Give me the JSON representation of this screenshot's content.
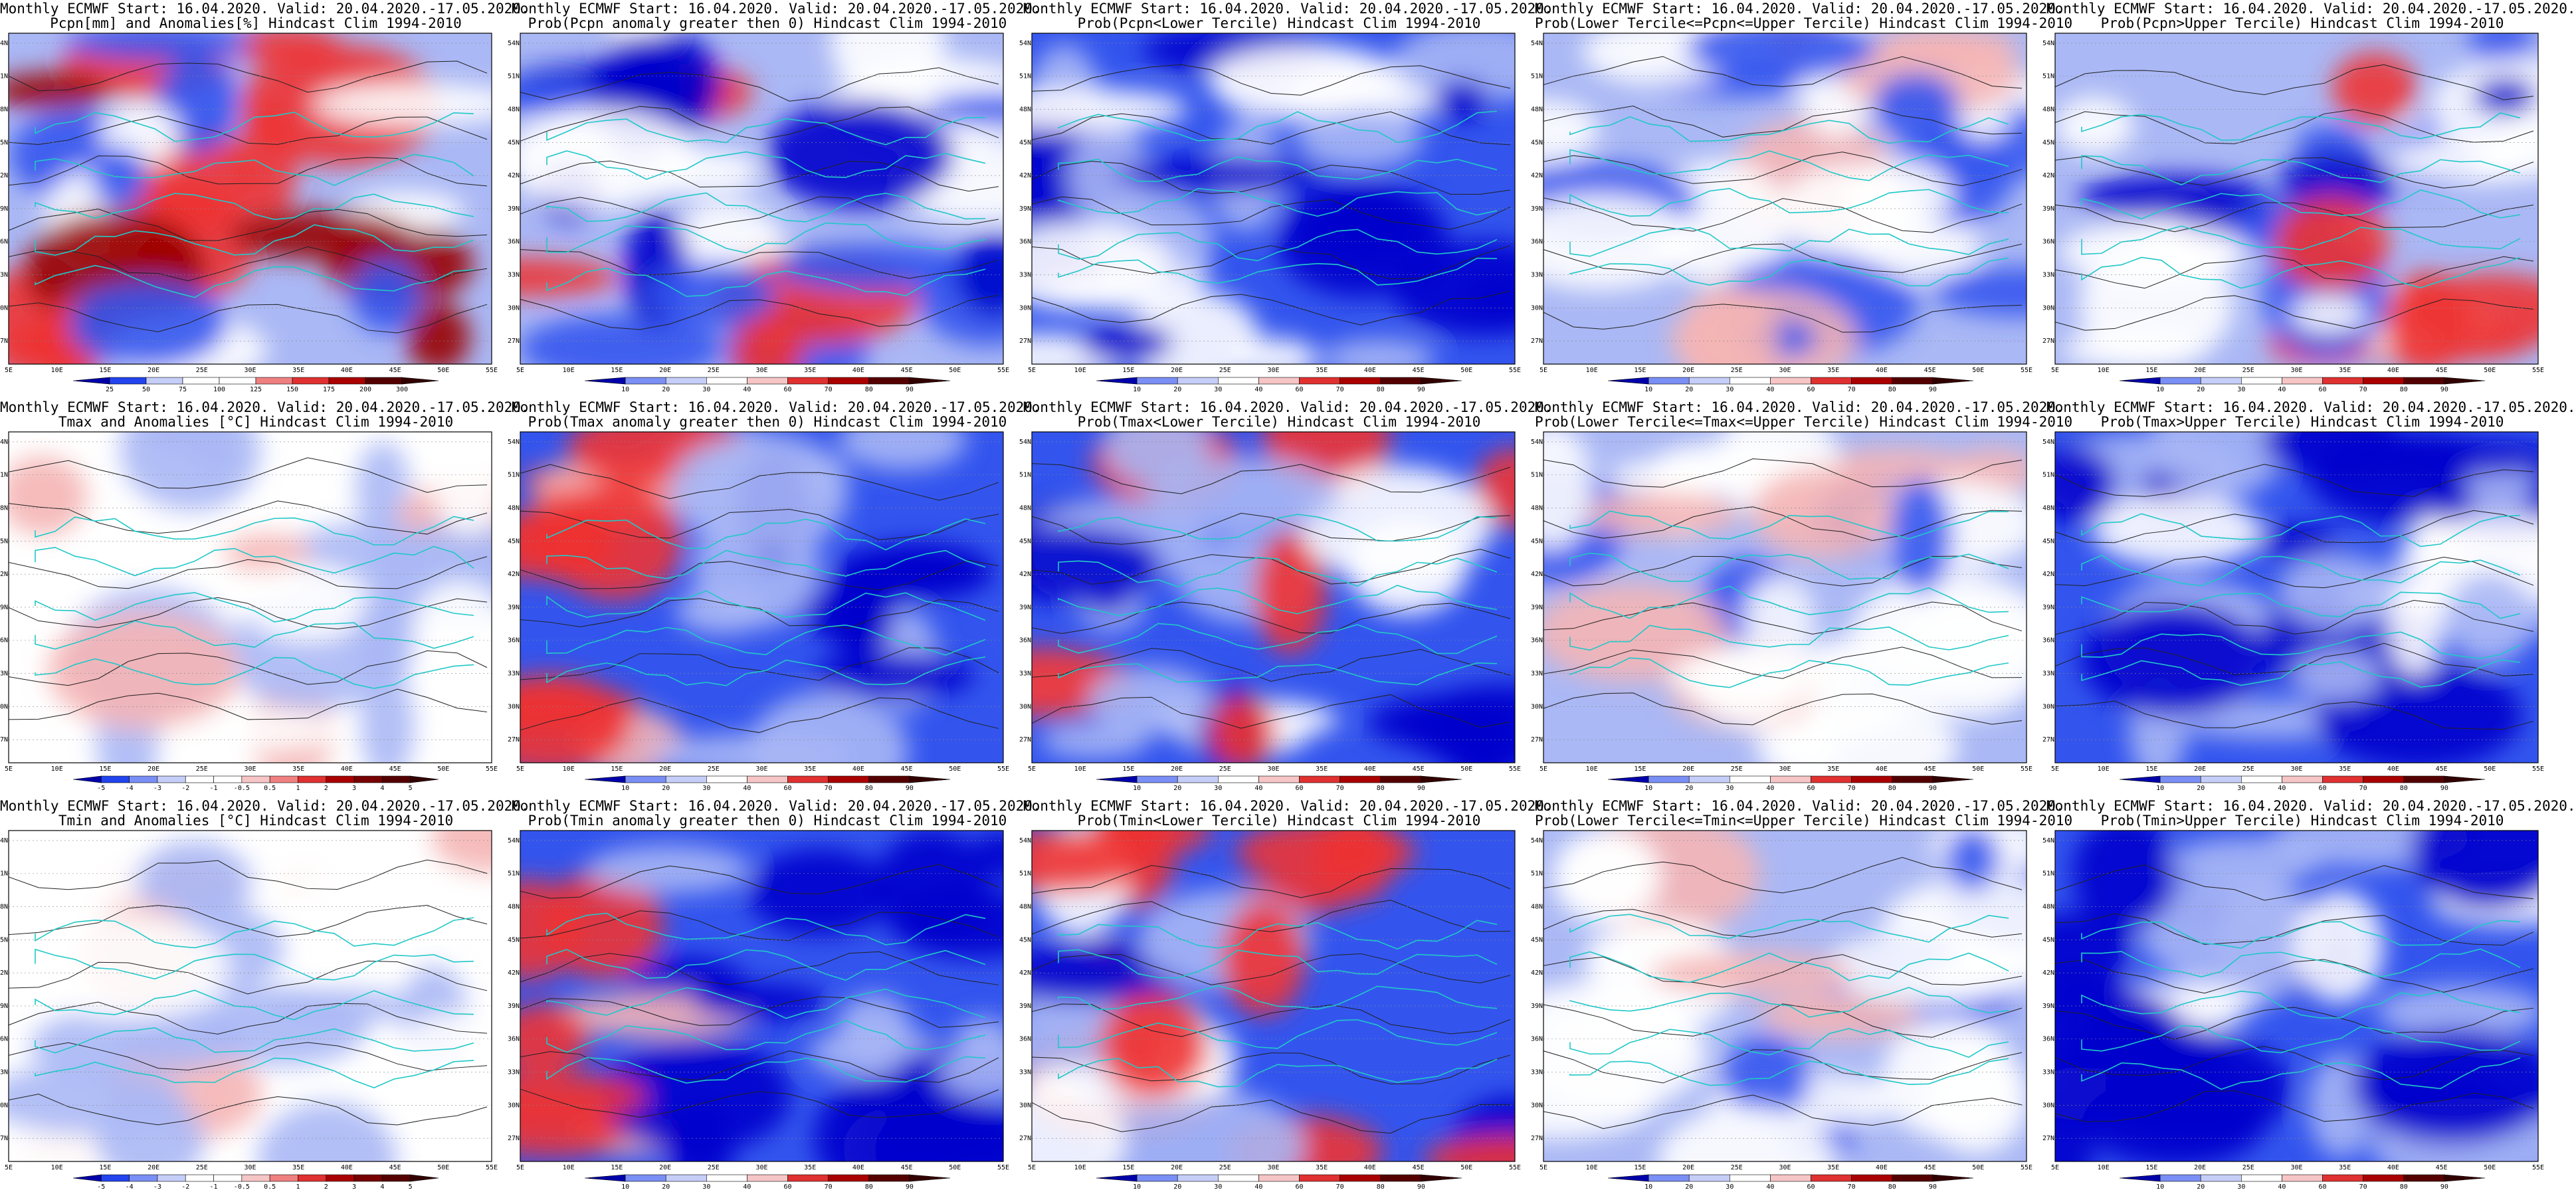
{
  "common_title": "Monthly ECMWF Start: 16.04.2020. Valid: 20.04.2020.-17.05.2020.",
  "lat_ticks": [
    "54N",
    "51N",
    "48N",
    "45N",
    "42N",
    "39N",
    "36N",
    "33N",
    "30N",
    "27N"
  ],
  "lon_ticks": [
    "5E",
    "10E",
    "15E",
    "20E",
    "25E",
    "30E",
    "35E",
    "40E",
    "45E",
    "50E",
    "55E"
  ],
  "colorbars": {
    "pcpn_anom": [
      "25",
      "50",
      "75",
      "100",
      "125",
      "150",
      "175",
      "200",
      "300"
    ],
    "prob": [
      "10",
      "20",
      "30",
      "40",
      "60",
      "70",
      "80",
      "90"
    ],
    "temp_anom": [
      "-5",
      "-4",
      "-3",
      "-2",
      "-1",
      "-0.5",
      "0.5",
      "1",
      "2",
      "3",
      "4",
      "5"
    ]
  },
  "colors": {
    "dark_blue": "#0000cc",
    "blue": "#3355ee",
    "light_blue": "#aab8f5",
    "white": "#ffffff",
    "light_red": "#f5b5b5",
    "red": "#ee3333",
    "dark_red": "#990000",
    "coast": "#21c8c8",
    "contour": "#222222"
  },
  "panels": [
    {
      "subtitle": "Pcpn[mm] and Anomalies[%] Hindcast Clim 1994-2010",
      "colorbar": "pcpn_anom",
      "tint": "mixed"
    },
    {
      "subtitle": "Prob(Pcpn anomaly greater then 0) Hindcast Clim 1994-2010",
      "colorbar": "prob",
      "tint": "blue"
    },
    {
      "subtitle": "Prob(Pcpn<Lower Tercile) Hindcast Clim 1994-2010",
      "colorbar": "prob",
      "tint": "blue-deep"
    },
    {
      "subtitle": "Prob(Lower Tercile<=Pcpn<=Upper Tercile) Hindcast Clim 1994-2010",
      "colorbar": "prob",
      "tint": "blue-light"
    },
    {
      "subtitle": "Prob(Pcpn>Upper Tercile) Hindcast Clim 1994-2010",
      "colorbar": "prob",
      "tint": "blue"
    },
    {
      "subtitle": "Tmax and Anomalies [°C] Hindcast Clim 1994-2010",
      "colorbar": "temp_anom",
      "tint": "light"
    },
    {
      "subtitle": "Prob(Tmax anomaly greater then 0) Hindcast Clim 1994-2010",
      "colorbar": "prob",
      "tint": "redwest-blueeast"
    },
    {
      "subtitle": "Prob(Tmax<Lower Tercile) Hindcast Clim 1994-2010",
      "colorbar": "prob",
      "tint": "blue-rednorth"
    },
    {
      "subtitle": "Prob(Lower Tercile<=Tmax<=Upper Tercile) Hindcast Clim 1994-2010",
      "colorbar": "prob",
      "tint": "blue-light"
    },
    {
      "subtitle": "Prob(Tmax>Upper Tercile) Hindcast Clim 1994-2010",
      "colorbar": "prob",
      "tint": "blue-deep"
    },
    {
      "subtitle": "Tmin and Anomalies [°C] Hindcast Clim 1994-2010",
      "colorbar": "temp_anom",
      "tint": "light"
    },
    {
      "subtitle": "Prob(Tmin anomaly greater then 0) Hindcast Clim 1994-2010",
      "colorbar": "prob",
      "tint": "redwest-blueeast"
    },
    {
      "subtitle": "Prob(Tmin<Lower Tercile) Hindcast Clim 1994-2010",
      "colorbar": "prob",
      "tint": "blue-rednorth"
    },
    {
      "subtitle": "Prob(Lower Tercile<=Tmin<=Upper Tercile) Hindcast Clim 1994-2010",
      "colorbar": "prob",
      "tint": "blue-light"
    },
    {
      "subtitle": "Prob(Tmin>Upper Tercile) Hindcast Clim 1994-2010",
      "colorbar": "prob",
      "tint": "blue-deep"
    }
  ]
}
